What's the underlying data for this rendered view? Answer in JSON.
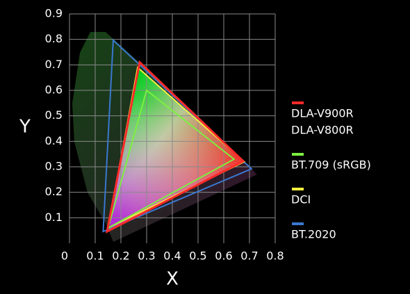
{
  "chart_data": {
    "type": "gamut",
    "x_label": "X",
    "y_label": "Y",
    "xlim": [
      0,
      0.8
    ],
    "ylim": [
      0,
      0.9
    ],
    "xticks": [
      0,
      0.1,
      0.2,
      0.3,
      0.4,
      0.5,
      0.6,
      0.7,
      0.8
    ],
    "yticks": [
      0.1,
      0.2,
      0.3,
      0.4,
      0.5,
      0.6,
      0.7,
      0.8,
      0.9
    ],
    "grid": true,
    "series": [
      {
        "name": [
          "DLA-V900R",
          "DLA-V800R"
        ],
        "color": "#ff2a2a",
        "x": [
          0.676,
          0.273,
          0.146
        ],
        "y": [
          0.322,
          0.71,
          0.046
        ]
      },
      {
        "name": [
          "BT.709 (sRGB)"
        ],
        "color": "#7cf040",
        "x": [
          0.64,
          0.3,
          0.15
        ],
        "y": [
          0.33,
          0.6,
          0.06
        ]
      },
      {
        "name": [
          "DCI"
        ],
        "color": "#f4f040",
        "x": [
          0.68,
          0.265,
          0.15
        ],
        "y": [
          0.32,
          0.69,
          0.06
        ]
      },
      {
        "name": [
          "BT.2020"
        ],
        "color": "#3a78d0",
        "x": [
          0.708,
          0.17,
          0.131
        ],
        "y": [
          0.292,
          0.797,
          0.046
        ]
      }
    ]
  }
}
